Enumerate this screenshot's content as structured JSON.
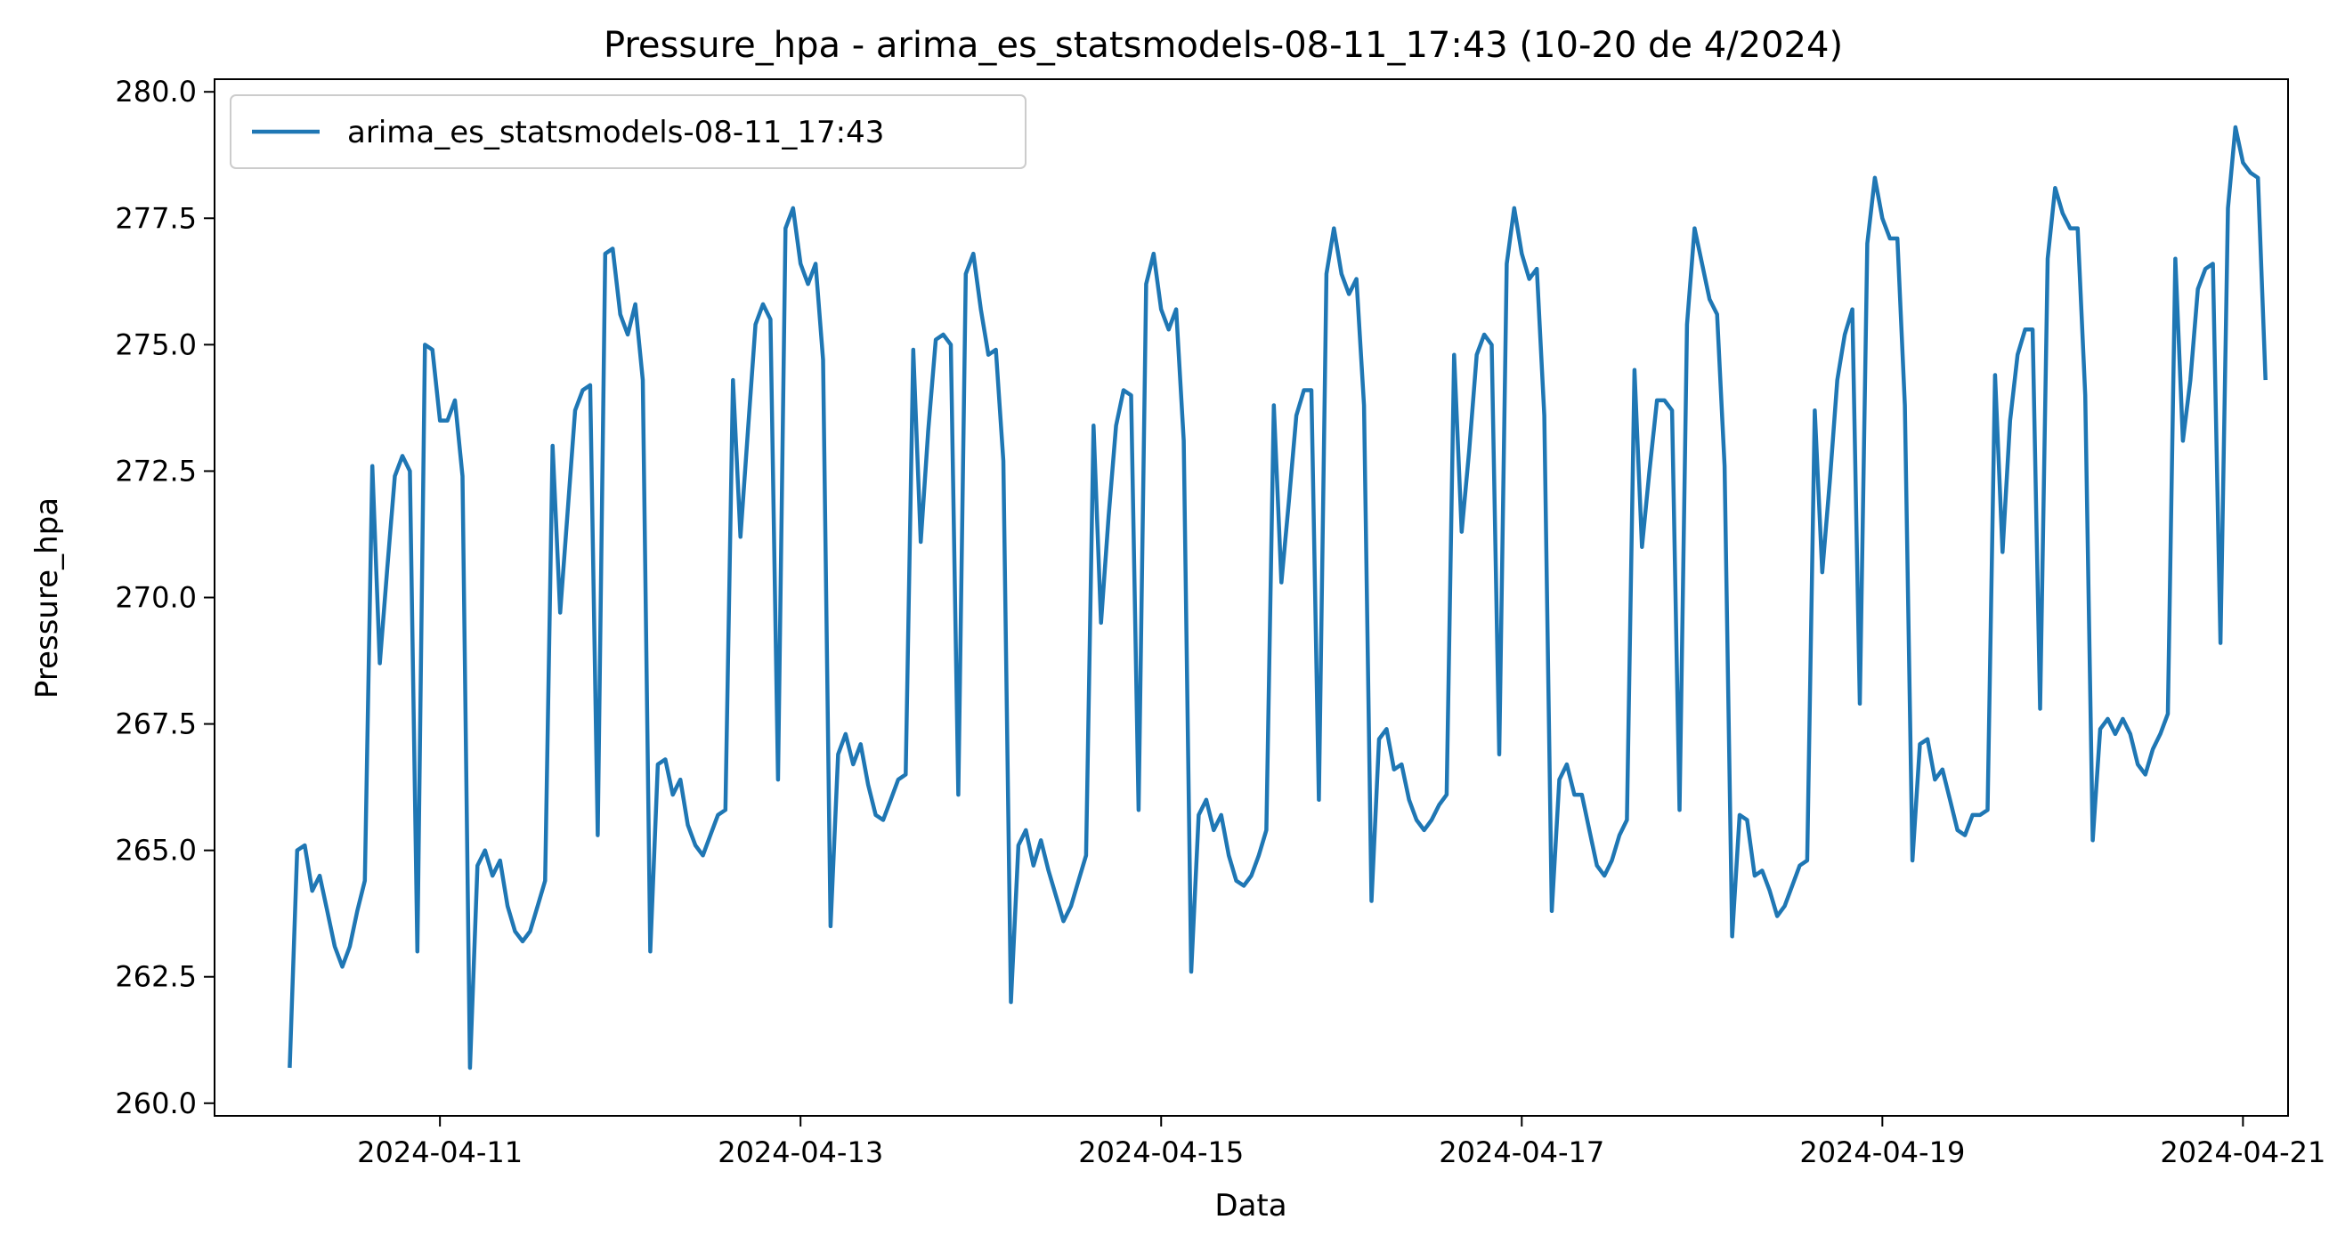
{
  "chart_data": {
    "type": "line",
    "title": "Pressure_hpa - arima_es_statsmodels-08-11_17:43 (10-20 de 4/2024)",
    "xlabel": "Data",
    "ylabel": "Pressure_hpa",
    "x_start": "2024-04-10T04:00",
    "x_step_hours": 1,
    "xlim": [
      "2024-04-09T18:00",
      "2024-04-21T06:00"
    ],
    "ylim": [
      259.75,
      280.25
    ],
    "x_ticks": [
      "2024-04-11",
      "2024-04-13",
      "2024-04-15",
      "2024-04-17",
      "2024-04-19",
      "2024-04-21"
    ],
    "y_ticks": [
      "260.0",
      "262.5",
      "265.0",
      "267.5",
      "270.0",
      "272.5",
      "275.0",
      "277.5",
      "280.0"
    ],
    "grid": false,
    "legend_position": "top-left",
    "series": [
      {
        "name": "arima_es_statsmodels-08-11_17:43",
        "color": "#1f77b4",
        "values": [
          260.7,
          265.0,
          265.1,
          264.2,
          264.5,
          263.8,
          263.1,
          262.7,
          263.1,
          263.8,
          264.4,
          272.6,
          268.7,
          270.6,
          272.4,
          272.8,
          272.5,
          263.0,
          275.0,
          274.9,
          273.5,
          273.5,
          273.9,
          272.4,
          260.7,
          264.7,
          265.0,
          264.5,
          264.8,
          263.9,
          263.4,
          263.2,
          263.4,
          263.9,
          264.4,
          273.0,
          269.7,
          271.7,
          273.7,
          274.1,
          274.2,
          265.3,
          276.8,
          276.9,
          275.6,
          275.2,
          275.8,
          274.3,
          263.0,
          266.7,
          266.8,
          266.1,
          266.4,
          265.5,
          265.1,
          264.9,
          265.3,
          265.7,
          265.8,
          274.3,
          271.2,
          273.3,
          275.4,
          275.8,
          275.5,
          266.4,
          277.3,
          277.7,
          276.6,
          276.2,
          276.6,
          274.7,
          263.5,
          266.9,
          267.3,
          266.7,
          267.1,
          266.3,
          265.7,
          265.6,
          266.0,
          266.4,
          266.5,
          274.9,
          271.1,
          273.3,
          275.1,
          275.2,
          275.0,
          266.1,
          276.4,
          276.8,
          275.7,
          274.8,
          274.9,
          272.7,
          262.0,
          265.1,
          265.4,
          264.7,
          265.2,
          264.6,
          264.1,
          263.6,
          263.9,
          264.4,
          264.9,
          273.4,
          269.5,
          271.6,
          273.4,
          274.1,
          274.0,
          265.8,
          276.2,
          276.8,
          275.7,
          275.3,
          275.7,
          273.1,
          262.6,
          265.7,
          266.0,
          265.4,
          265.7,
          264.9,
          264.4,
          264.3,
          264.5,
          264.9,
          265.4,
          273.8,
          270.3,
          271.9,
          273.6,
          274.1,
          274.1,
          266.0,
          276.4,
          277.3,
          276.4,
          276.0,
          276.3,
          273.8,
          264.0,
          267.2,
          267.4,
          266.6,
          266.7,
          266.0,
          265.6,
          265.4,
          265.6,
          265.9,
          266.1,
          274.8,
          271.3,
          272.9,
          274.8,
          275.2,
          275.0,
          266.9,
          276.6,
          277.7,
          276.8,
          276.3,
          276.5,
          273.6,
          263.8,
          266.4,
          266.7,
          266.1,
          266.1,
          265.4,
          264.7,
          264.5,
          264.8,
          265.3,
          265.6,
          274.5,
          271.0,
          272.5,
          273.9,
          273.9,
          273.7,
          265.8,
          275.4,
          277.3,
          276.6,
          275.9,
          275.6,
          272.6,
          263.3,
          265.7,
          265.6,
          264.5,
          264.6,
          264.2,
          263.7,
          263.9,
          264.3,
          264.7,
          264.8,
          273.7,
          270.5,
          272.3,
          274.3,
          275.2,
          275.7,
          267.9,
          277.0,
          278.3,
          277.5,
          277.1,
          277.1,
          273.8,
          264.8,
          267.1,
          267.2,
          266.4,
          266.6,
          266.0,
          265.4,
          265.3,
          265.7,
          265.7,
          265.8,
          274.4,
          270.9,
          273.5,
          274.8,
          275.3,
          275.3,
          267.8,
          276.7,
          278.1,
          277.6,
          277.3,
          277.3,
          274.0,
          265.2,
          267.4,
          267.6,
          267.3,
          267.6,
          267.3,
          266.7,
          266.5,
          267.0,
          267.3,
          267.7,
          276.7,
          273.1,
          274.3,
          276.1,
          276.5,
          276.6,
          269.1,
          277.7,
          279.3,
          278.6,
          278.4,
          278.3,
          274.3
        ]
      }
    ]
  }
}
